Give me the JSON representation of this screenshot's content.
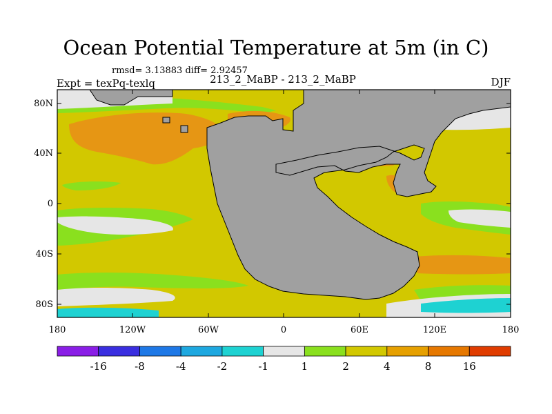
{
  "title": "Ocean Potential Temperature at 5m (in C)",
  "subtitle": "rmsd= 3.13883 diff= 2.92457",
  "center_label": "213_2_MaBP - 213_2_MaBP",
  "left_label": "Expt = texPq-texlq",
  "right_label": "DJF",
  "axes": {
    "lat_ticks": [
      "80N",
      "40N",
      "0",
      "40S",
      "80S"
    ],
    "lon_ticks": [
      "180",
      "120W",
      "60W",
      "0",
      "60E",
      "120E",
      "180"
    ]
  },
  "colorbar": {
    "colors": [
      "#8a1ee6",
      "#3a2ee0",
      "#1e78e6",
      "#1ea8e0",
      "#1ed2d2",
      "#e6e6e6",
      "#8ae01e",
      "#d2c800",
      "#e6a000",
      "#e67800",
      "#e03c00"
    ],
    "labels": [
      "-16",
      "-8",
      "-4",
      "-2",
      "-1",
      "1",
      "2",
      "4",
      "8",
      "16"
    ]
  },
  "colors": {
    "land": "#a0a0a0",
    "base_ocean": "#d2c800",
    "warm": "#e69614",
    "mild": "#8ae01e",
    "neutral": "#e6e6e6",
    "cold": "#1ed2d2"
  }
}
